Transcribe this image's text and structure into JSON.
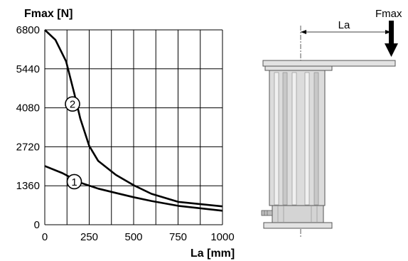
{
  "chart_data": {
    "type": "line",
    "ylabel": "Fmax [N]",
    "xlabel": "La [mm]",
    "xlim": [
      0,
      1000
    ],
    "ylim": [
      0,
      6800
    ],
    "x_ticks": [
      "0",
      "250",
      "500",
      "750",
      "1000"
    ],
    "y_ticks": [
      "0",
      "1360",
      "2720",
      "4080",
      "5440",
      "6800"
    ],
    "grid": true,
    "series": [
      {
        "name": "2",
        "points": [
          [
            0,
            6800
          ],
          [
            60,
            6450
          ],
          [
            120,
            5700
          ],
          [
            165,
            4600
          ],
          [
            200,
            3700
          ],
          [
            250,
            2750
          ],
          [
            300,
            2230
          ],
          [
            400,
            1740
          ],
          [
            500,
            1380
          ],
          [
            600,
            1080
          ],
          [
            750,
            800
          ],
          [
            1000,
            640
          ]
        ]
      },
      {
        "name": "1",
        "points": [
          [
            0,
            2050
          ],
          [
            100,
            1800
          ],
          [
            200,
            1470
          ],
          [
            300,
            1260
          ],
          [
            400,
            1110
          ],
          [
            500,
            960
          ],
          [
            600,
            830
          ],
          [
            750,
            660
          ],
          [
            1000,
            490
          ]
        ]
      }
    ],
    "annotations": [
      "1",
      "2"
    ]
  },
  "diagram": {
    "dimension_label": "La",
    "force_label": "Fmax"
  }
}
